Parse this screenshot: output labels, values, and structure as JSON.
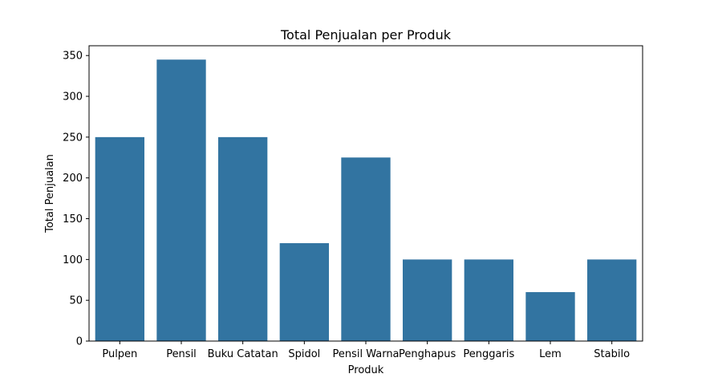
{
  "chart_data": {
    "type": "bar",
    "title": "Total Penjualan per Produk",
    "xlabel": "Produk",
    "ylabel": "Total Penjualan",
    "categories": [
      "Pulpen",
      "Pensil",
      "Buku Catatan",
      "Spidol",
      "Pensil Warna",
      "Penghapus",
      "Penggaris",
      "Lem",
      "Stabilo"
    ],
    "values": [
      250,
      345,
      250,
      120,
      225,
      100,
      100,
      60,
      100
    ],
    "ylim": [
      0,
      362
    ],
    "yticks": [
      0,
      50,
      100,
      150,
      200,
      250,
      300,
      350
    ],
    "bar_color": "#3274a1",
    "grid": false,
    "legend": "none"
  }
}
